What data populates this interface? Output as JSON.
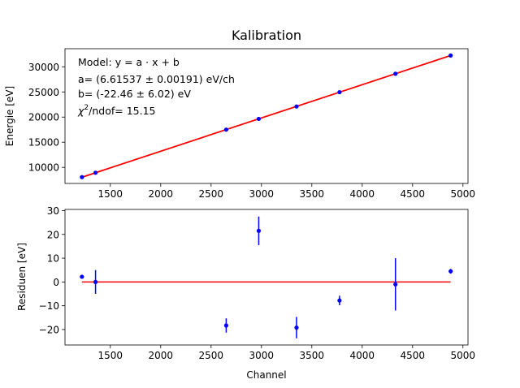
{
  "chart_data": [
    {
      "type": "scatter",
      "title": "Kalibration",
      "xlabel": "",
      "ylabel": "Energie [eV]",
      "xlim": [
        1050,
        5050
      ],
      "ylim": [
        6800,
        33600
      ],
      "xticks": [
        1500,
        2000,
        2500,
        3000,
        3500,
        4000,
        4500,
        5000
      ],
      "yticks": [
        10000,
        15000,
        20000,
        25000,
        30000
      ],
      "fit": {
        "a": 6.61537,
        "b": -22.46,
        "color": "#ff0000"
      },
      "series": [
        {
          "color": "#0000ff",
          "x": [
            1218,
            1353,
            2650,
            2973,
            3348,
            3775,
            4330,
            4878
          ],
          "y": [
            8057,
            8928,
            17508,
            19647,
            22109,
            24952,
            28618,
            32246
          ]
        }
      ],
      "annotation": {
        "line1": "Model: y = a · x + b",
        "line2": "a= (6.61537 ± 0.00191) eV/ch",
        "line3": "b= (-22.46 ± 6.02) eV",
        "line4_prefix": "χ",
        "line4_sup": "2",
        "line4_suffix": "/ndof= 15.15"
      }
    },
    {
      "type": "scatter",
      "xlabel": "Channel",
      "ylabel": "Residuen [eV]",
      "xlim": [
        1050,
        5050
      ],
      "ylim": [
        -26.5,
        30.5
      ],
      "xticks": [
        1500,
        2000,
        2500,
        3000,
        3500,
        4000,
        4500,
        5000
      ],
      "yticks": [
        -20,
        -10,
        0,
        10,
        20,
        30
      ],
      "zero_line": {
        "x": [
          1218,
          4878
        ],
        "y": 0,
        "color": "#ff0000"
      },
      "series": [
        {
          "color": "#0000ff",
          "x": [
            1218,
            1353,
            2650,
            2973,
            3348,
            3775,
            4330,
            4878
          ],
          "y": [
            2.2,
            0.0,
            -18.3,
            21.5,
            -19.2,
            -7.8,
            -1.0,
            4.5
          ],
          "yerr": [
            0.5,
            5.0,
            3.0,
            6.0,
            4.5,
            2.0,
            11.0,
            1.0
          ]
        }
      ]
    }
  ]
}
